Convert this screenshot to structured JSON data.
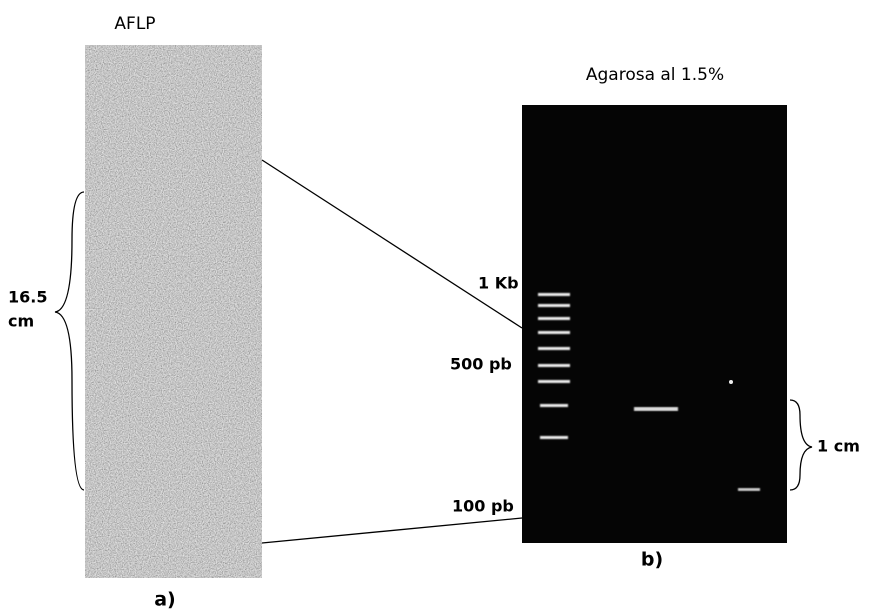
{
  "figure": {
    "panel_a": {
      "title": "AFLP",
      "label": "a)",
      "length_label": [
        "16.5",
        "cm"
      ]
    },
    "panel_b": {
      "title": "Agarosa al 1.5%",
      "label": "b)",
      "markers": [
        "1 Kb",
        "500 pb",
        "100 pb"
      ],
      "scale_label": "1 cm"
    }
  }
}
